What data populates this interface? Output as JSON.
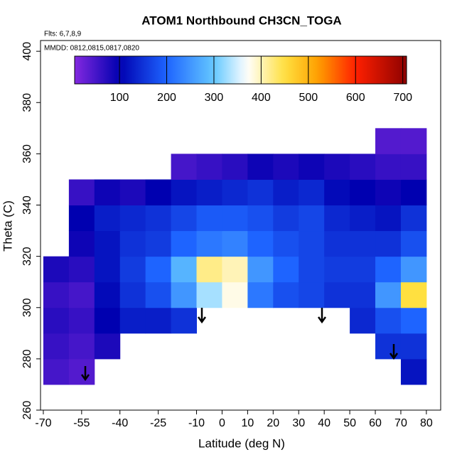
{
  "chart_data": {
    "type": "heatmap",
    "title": "ATOM1 Northbound CH3CN_TOGA",
    "subtitle": "Flts: 6,7,8,9",
    "annotation": "MMDD: 0812,0815,0817,0820",
    "x_label": "Latitude (deg N)",
    "y_label": "Theta (C)",
    "x_bins": [
      -70,
      -60,
      -50,
      -40,
      -30,
      -20,
      -10,
      0,
      10,
      20,
      30,
      40,
      50,
      60,
      70,
      80
    ],
    "y_bins": [
      270,
      280,
      290,
      300,
      310,
      320,
      330,
      340,
      350,
      360,
      370
    ],
    "z": [
      [
        50,
        40,
        null,
        null,
        null,
        null,
        null,
        null,
        null,
        null,
        null,
        null,
        null,
        null,
        120
      ],
      [
        60,
        50,
        80,
        null,
        null,
        null,
        null,
        null,
        null,
        null,
        null,
        null,
        null,
        150,
        150
      ],
      [
        70,
        60,
        100,
        130,
        130,
        150,
        null,
        null,
        null,
        null,
        null,
        null,
        140,
        180,
        200
      ],
      [
        60,
        50,
        110,
        150,
        180,
        250,
        330,
        380,
        220,
        180,
        170,
        150,
        150,
        250,
        450
      ],
      [
        80,
        70,
        120,
        160,
        200,
        280,
        420,
        400,
        250,
        200,
        170,
        160,
        160,
        200,
        250
      ],
      [
        null,
        90,
        120,
        150,
        160,
        200,
        220,
        230,
        200,
        180,
        170,
        150,
        150,
        150,
        180
      ],
      [
        null,
        100,
        130,
        140,
        150,
        170,
        190,
        190,
        180,
        160,
        170,
        140,
        130,
        120,
        150
      ],
      [
        null,
        60,
        90,
        80,
        100,
        120,
        130,
        140,
        150,
        130,
        140,
        110,
        100,
        90,
        100
      ],
      [
        null,
        null,
        null,
        null,
        null,
        50,
        60,
        70,
        90,
        80,
        90,
        80,
        70,
        60,
        60
      ],
      [
        null,
        null,
        null,
        null,
        null,
        null,
        null,
        null,
        null,
        null,
        null,
        null,
        null,
        40,
        40
      ]
    ],
    "xlim": [
      -71.1,
      85.6
    ],
    "ylim": [
      260,
      404.2
    ],
    "xticks": [
      -70,
      -55,
      -40,
      -25,
      -10,
      0,
      10,
      20,
      30,
      40,
      50,
      60,
      70,
      80
    ],
    "yticks": [
      260,
      280,
      300,
      320,
      340,
      360,
      380,
      400
    ],
    "colorbar_lim": [
      5,
      708
    ],
    "colorbar_ticks": [
      100,
      200,
      300,
      400,
      500,
      600,
      700
    ],
    "colorscale": [
      [
        0,
        "#8a2be2"
      ],
      [
        100,
        "#0000b0"
      ],
      [
        200,
        "#1e64ff"
      ],
      [
        300,
        "#64c8ff"
      ],
      [
        370,
        "#ffffff"
      ],
      [
        450,
        "#ffe040"
      ],
      [
        520,
        "#ffa000"
      ],
      [
        600,
        "#ff2000"
      ],
      [
        710,
        "#8b0000"
      ]
    ]
  }
}
